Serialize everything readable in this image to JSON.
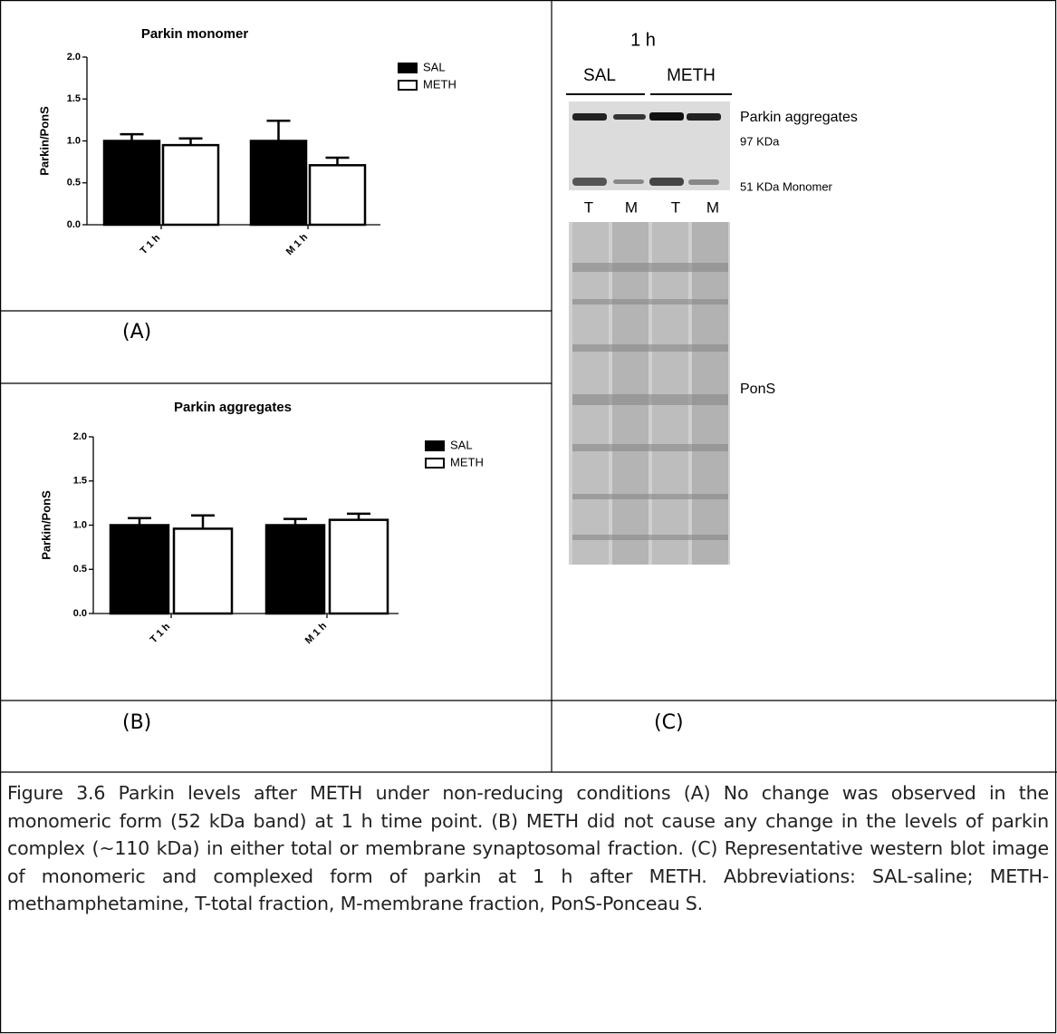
{
  "chart_data": [
    {
      "type": "bar",
      "title": "Parkin monomer",
      "y_label": "Parkin/PonS",
      "categories": [
        "T 1 h",
        "M 1 h"
      ],
      "series": [
        {
          "name": "SAL",
          "color": "#000000",
          "values": [
            1.0,
            1.0
          ],
          "errors": [
            0.08,
            0.24
          ]
        },
        {
          "name": "METH",
          "color": "#ffffff",
          "values": [
            0.95,
            0.71
          ],
          "errors": [
            0.08,
            0.09
          ]
        }
      ],
      "ylim": [
        0,
        2
      ],
      "yticks": [
        {
          "value": 0,
          "label": "0.0"
        },
        0.5,
        {
          "value": 1,
          "label": "1.0"
        },
        1.5,
        {
          "value": 2,
          "label": "2.0"
        }
      ]
    },
    {
      "type": "bar",
      "title": "Parkin aggregates",
      "y_label": "Parkin/PonS",
      "categories": [
        "T 1 h",
        "M 1 h"
      ],
      "series": [
        {
          "name": "SAL",
          "color": "#000000",
          "values": [
            1.0,
            1.0
          ],
          "errors": [
            0.08,
            0.07
          ]
        },
        {
          "name": "METH",
          "color": "#ffffff",
          "values": [
            0.96,
            1.06
          ],
          "errors": [
            0.15,
            0.07
          ]
        }
      ],
      "ylim": [
        0,
        2
      ],
      "yticks": [
        {
          "value": 0,
          "label": "0.0"
        },
        0.5,
        {
          "value": 1,
          "label": "1.0"
        },
        1.5,
        {
          "value": 2,
          "label": "2.0"
        }
      ]
    }
  ],
  "panels": {
    "a": "(A)",
    "b": "(B)",
    "c": "(C)"
  },
  "blot": {
    "time": "1 h",
    "groups": [
      "SAL",
      "METH"
    ],
    "lanes": [
      "T",
      "M",
      "T",
      "M"
    ],
    "labels": [
      "Parkin aggregates",
      "97 KDa",
      "51 KDa Monomer",
      "PonS"
    ]
  },
  "caption": "Figure 3.6 Parkin levels after METH under non-reducing conditions (A) No change was observed in the monomeric form (52 kDa band) at 1 h time point. (B) METH did not cause any change in the levels of parkin complex (~110 kDa) in either total or membrane synaptosomal fraction. (C) Representative western blot image of monomeric and complexed form of parkin at 1 h after METH. Abbreviations: SAL-saline; METH-methamphetamine, T-total fraction, M-membrane fraction, PonS-Ponceau S."
}
